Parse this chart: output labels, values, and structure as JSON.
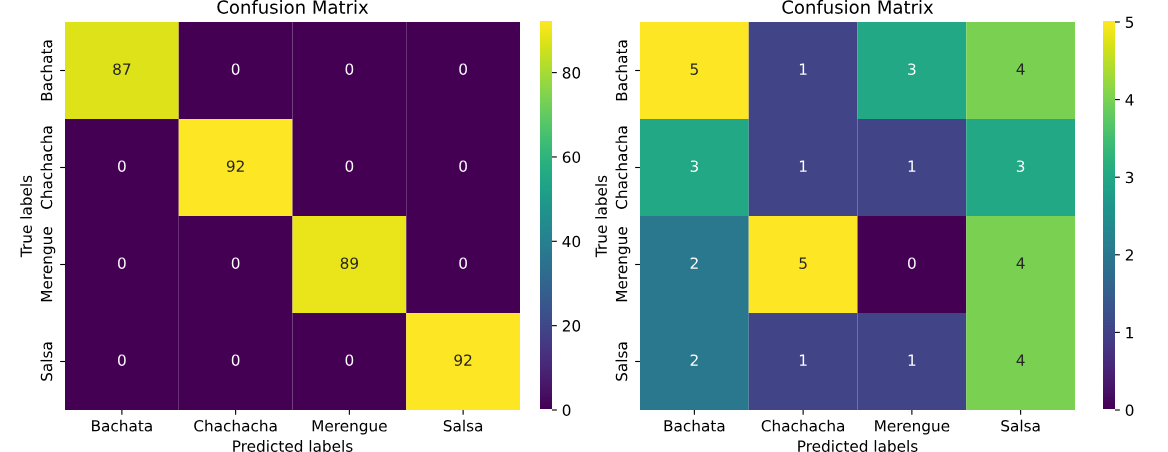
{
  "chart_data": [
    {
      "type": "heatmap",
      "title": "Confusion Matrix",
      "xlabel": "Predicted labels",
      "ylabel": "True labels",
      "categories": [
        "Bachata",
        "Chachacha",
        "Merengue",
        "Salsa"
      ],
      "y_categories": [
        "Bachata",
        "Chachacha",
        "Merengue",
        "Salsa"
      ],
      "cells": [
        [
          87,
          0,
          0,
          0
        ],
        [
          0,
          92,
          0,
          0
        ],
        [
          0,
          0,
          89,
          0
        ],
        [
          0,
          0,
          0,
          92
        ]
      ],
      "clim": [
        0,
        92
      ],
      "cticks": [
        0,
        20,
        40,
        60,
        80
      ],
      "data_labels": true
    },
    {
      "type": "heatmap",
      "title": "Confusion Matrix",
      "xlabel": "Predicted labels",
      "ylabel": "True labels",
      "categories": [
        "Bachata",
        "Chachacha",
        "Merengue",
        "Salsa"
      ],
      "y_categories": [
        "Bachata",
        "Chachacha",
        "Merengue",
        "Salsa"
      ],
      "cells": [
        [
          5,
          1,
          3,
          4
        ],
        [
          3,
          1,
          1,
          3
        ],
        [
          2,
          5,
          0,
          4
        ],
        [
          2,
          1,
          1,
          4
        ]
      ],
      "clim": [
        0,
        5
      ],
      "cticks": [
        0,
        1,
        2,
        3,
        4,
        5
      ],
      "data_labels": true
    }
  ]
}
